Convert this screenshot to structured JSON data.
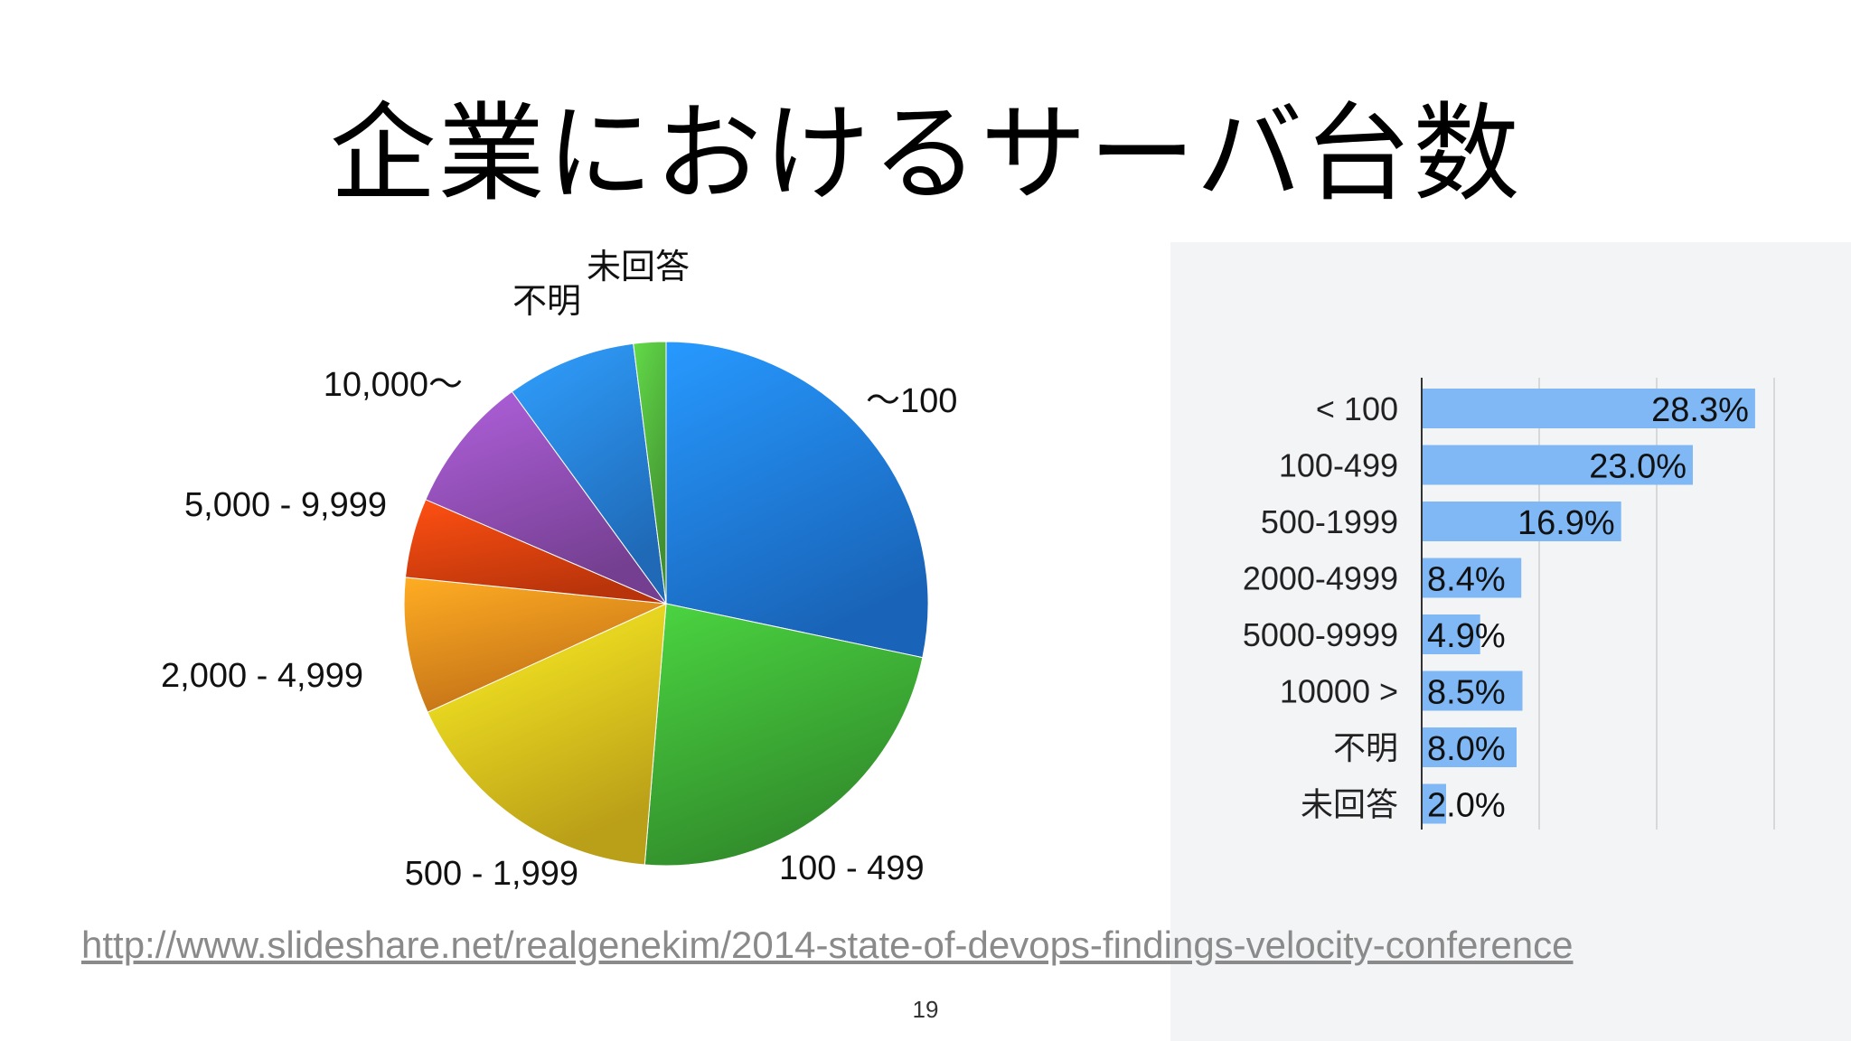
{
  "slide": {
    "title": "企業におけるサーバ台数",
    "source_url": "http://www.slideshare.net/realgenekim/2014-state-of-devops-findings-velocity-conference",
    "page_number": "19"
  },
  "chart_data": [
    {
      "type": "pie",
      "categories": [
        "～100",
        "100 - 499",
        "500 - 1,999",
        "2,000 - 4,999",
        "5,000 - 9,999",
        "10,000～",
        "不明",
        "未回答"
      ],
      "values": [
        28.3,
        23.0,
        16.9,
        8.4,
        4.9,
        8.5,
        8.0,
        2.0
      ],
      "colors": [
        "#1f7ae0",
        "#3caa34",
        "#e3c21d",
        "#ec8a1c",
        "#e2400e",
        "#8d4db0",
        "#2680de",
        "#4fae3a"
      ],
      "legend": "none"
    },
    {
      "type": "bar",
      "orientation": "horizontal",
      "categories": [
        "< 100",
        "100-499",
        "500-1999",
        "2000-4999",
        "5000-9999",
        "10000 >",
        "不明",
        "未回答"
      ],
      "values": [
        28.3,
        23.0,
        16.9,
        8.4,
        4.9,
        8.5,
        8.0,
        2.0
      ],
      "value_labels": [
        "28.3%",
        "23.0%",
        "16.9%",
        "8.4%",
        "4.9%",
        "8.5%",
        "8.0%",
        "2.0%"
      ],
      "xlim": [
        0,
        30
      ],
      "grid": true,
      "bar_color": "#7fb8f5"
    }
  ]
}
